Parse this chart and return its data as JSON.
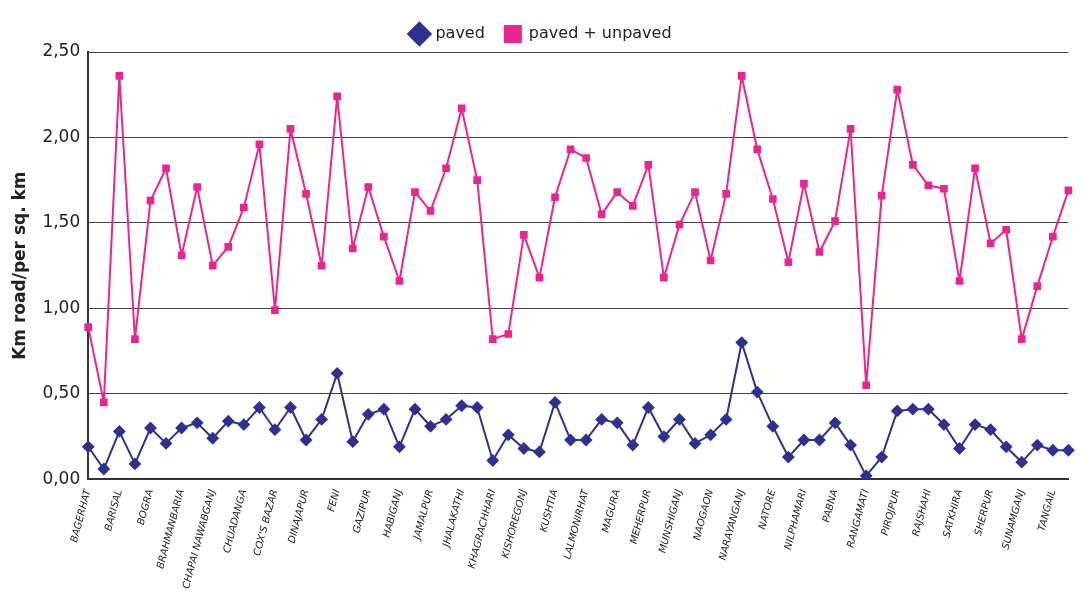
{
  "chart_data": {
    "type": "line",
    "ylabel": "Km road/per sq. km",
    "categories": [
      "BAGERHAT",
      null,
      "BARISAL",
      null,
      "BOGRA",
      null,
      "BRAHMANBARIA",
      null,
      "CHAPAI NAWABGANJ",
      null,
      "CHUADANGA",
      null,
      "COX'S BAZAR",
      null,
      "DINAJAPUR",
      null,
      "FENI",
      null,
      "GAZIPUR",
      null,
      "HABIGANJ",
      null,
      "JAMALPUR",
      null,
      "JHALAKATHI",
      null,
      "KHAGRACHHARI",
      null,
      "KISHOREGONJ",
      null,
      "KUSHTIA",
      null,
      "LALMONIRHAT",
      null,
      "MAGURA",
      null,
      "MEHERPUR",
      null,
      "MUNSHIGANJ",
      null,
      "NAOGAON",
      null,
      "NARAYANGANJ",
      null,
      "NATORE",
      null,
      "NILPHAMARI",
      null,
      "PABNA",
      null,
      "RANGAMATI",
      null,
      "PIROJPUR",
      null,
      "RAJSHAHI",
      null,
      "SATKHIRA",
      null,
      "SHERPUR",
      null,
      "SUNAMGANJ",
      null,
      "TANGAIL",
      null
    ],
    "series": [
      {
        "name": "paved",
        "color": "#2e3192",
        "marker": "diamond",
        "values": [
          0.19,
          0.06,
          0.28,
          0.09,
          0.3,
          0.21,
          0.3,
          0.33,
          0.24,
          0.34,
          0.32,
          0.42,
          0.29,
          0.42,
          0.23,
          0.35,
          0.62,
          0.22,
          0.38,
          0.41,
          0.19,
          0.41,
          0.31,
          0.35,
          0.43,
          0.42,
          0.11,
          0.26,
          0.18,
          0.16,
          0.45,
          0.23,
          0.23,
          0.35,
          0.33,
          0.2,
          0.42,
          0.25,
          0.35,
          0.21,
          0.26,
          0.35,
          0.8,
          0.51,
          0.31,
          0.13,
          0.23,
          0.23,
          0.33,
          0.2,
          0.02,
          0.13,
          0.4,
          0.41,
          0.41,
          0.32,
          0.18,
          0.32,
          0.29,
          0.19,
          0.1,
          0.2,
          0.17,
          0.17
        ]
      },
      {
        "name": "paved + unpaved",
        "color": "#ec248f",
        "marker": "square",
        "values": [
          0.89,
          0.45,
          2.36,
          0.82,
          1.63,
          1.82,
          1.31,
          1.71,
          1.25,
          1.36,
          1.59,
          1.96,
          0.99,
          2.05,
          1.67,
          1.25,
          2.24,
          1.35,
          1.71,
          1.42,
          1.16,
          1.68,
          1.57,
          1.82,
          2.17,
          1.75,
          0.82,
          0.85,
          1.43,
          1.18,
          1.65,
          1.93,
          1.88,
          1.55,
          1.68,
          1.6,
          1.84,
          1.18,
          1.49,
          1.68,
          1.28,
          1.67,
          2.36,
          1.93,
          1.64,
          1.27,
          1.73,
          1.33,
          1.51,
          2.05,
          0.55,
          1.66,
          2.28,
          1.84,
          1.72,
          1.7,
          1.16,
          1.82,
          1.38,
          1.46,
          0.82,
          1.13,
          1.42,
          1.69
        ]
      }
    ],
    "ylim": [
      0,
      2.5
    ],
    "yticks": [
      {
        "value": 0,
        "label": "0,00"
      },
      {
        "value": 0.5,
        "label": "0,50"
      },
      {
        "value": 1,
        "label": "1,00"
      },
      {
        "value": 1.5,
        "label": "1,50"
      },
      {
        "value": 2,
        "label": "2,00"
      },
      {
        "value": 2.5,
        "label": "2,50"
      }
    ],
    "grid": "y",
    "legend": "top",
    "line_style": "solid"
  }
}
